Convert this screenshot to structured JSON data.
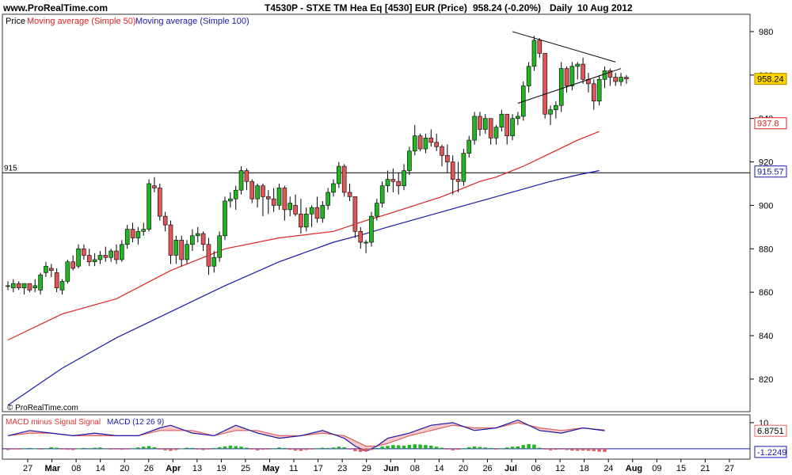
{
  "header": {
    "site": "www.ProRealTime.com",
    "title": "T4530P - STXE TM Hea Eq [4530] EUR (Price)",
    "price_change": "958.24 (-0.20%)",
    "period": "Daily",
    "date": "10 Aug 2012"
  },
  "watermark": "© ProRealTime.com",
  "legend": {
    "price": "Price",
    "ma50": "Moving average (Simple 50)",
    "ma100": "Moving average (Simple 100)"
  },
  "macd_legend": {
    "hist": "MACD minus Signal Signal",
    "macd": "MACD (12 26 9)"
  },
  "colors": {
    "up": "#22b422",
    "down": "#e05555",
    "ma50": "#dd2222",
    "ma100": "#1a1aa8",
    "macd_line": "#1a1aa8",
    "signal_line": "#e06060",
    "hist_pos": "#22b422",
    "hist_neg": "#e05555",
    "price_tag": "#ffd700"
  },
  "chart_data": [
    {
      "type": "candlestick",
      "title": "T4530P - STXE TM Hea Eq [4530] EUR (Price)",
      "ylim": [
        805,
        988
      ],
      "y_ticks": [
        820,
        840,
        860,
        880,
        900,
        920,
        940,
        960,
        980
      ],
      "x_ticks": [
        "27",
        "Mar",
        "08",
        "14",
        "20",
        "26",
        "Apr",
        "13",
        "19",
        "25",
        "May",
        "11",
        "17",
        "23",
        "29",
        "Jun",
        "08",
        "14",
        "20",
        "26",
        "Jul",
        "06",
        "12",
        "18",
        "24",
        "Aug",
        "09",
        "15",
        "21",
        "27"
      ],
      "ohlc": [
        [
          863,
          865,
          861,
          863
        ],
        [
          862,
          866,
          860,
          864
        ],
        [
          864,
          865,
          861,
          862
        ],
        [
          862,
          864,
          859,
          864
        ],
        [
          864,
          864,
          860,
          861
        ],
        [
          862,
          866,
          860,
          863
        ],
        [
          861,
          869,
          859,
          868
        ],
        [
          869,
          874,
          867,
          872
        ],
        [
          871,
          873,
          867,
          870
        ],
        [
          869,
          871,
          860,
          862
        ],
        [
          861,
          866,
          859,
          865
        ],
        [
          865,
          875,
          864,
          874
        ],
        [
          874,
          877,
          870,
          871
        ],
        [
          872,
          882,
          871,
          880
        ],
        [
          880,
          882,
          875,
          877
        ],
        [
          877,
          880,
          872,
          874
        ],
        [
          874,
          878,
          872,
          875
        ],
        [
          875,
          879,
          873,
          877
        ],
        [
          877,
          881,
          874,
          876
        ],
        [
          876,
          880,
          874,
          879
        ],
        [
          879,
          882,
          873,
          875
        ],
        [
          875,
          884,
          874,
          882
        ],
        [
          882,
          891,
          880,
          889
        ],
        [
          889,
          892,
          883,
          885
        ],
        [
          885,
          890,
          882,
          888
        ],
        [
          888,
          892,
          886,
          889
        ],
        [
          889,
          912,
          888,
          910
        ],
        [
          909,
          913,
          906,
          908
        ],
        [
          908,
          910,
          893,
          895
        ],
        [
          895,
          897,
          888,
          891
        ],
        [
          891,
          893,
          873,
          877
        ],
        [
          877,
          886,
          873,
          884
        ],
        [
          884,
          886,
          872,
          875
        ],
        [
          875,
          884,
          873,
          882
        ],
        [
          882,
          889,
          879,
          886
        ],
        [
          886,
          890,
          883,
          887
        ],
        [
          887,
          888,
          879,
          882
        ],
        [
          882,
          885,
          868,
          872
        ],
        [
          872,
          879,
          869,
          876
        ],
        [
          876,
          888,
          874,
          886
        ],
        [
          886,
          904,
          884,
          902
        ],
        [
          902,
          906,
          899,
          903
        ],
        [
          903,
          909,
          898,
          907
        ],
        [
          907,
          918,
          905,
          916
        ],
        [
          916,
          917,
          907,
          911
        ],
        [
          911,
          912,
          901,
          903
        ],
        [
          903,
          910,
          899,
          909
        ],
        [
          909,
          910,
          895,
          904
        ],
        [
          904,
          907,
          896,
          903
        ],
        [
          903,
          908,
          897,
          900
        ],
        [
          900,
          910,
          898,
          908
        ],
        [
          908,
          909,
          893,
          898
        ],
        [
          898,
          904,
          895,
          901
        ],
        [
          900,
          905,
          895,
          896
        ],
        [
          896,
          903,
          887,
          890
        ],
        [
          890,
          899,
          888,
          896
        ],
        [
          896,
          900,
          890,
          899
        ],
        [
          899,
          904,
          892,
          894
        ],
        [
          894,
          902,
          892,
          900
        ],
        [
          900,
          908,
          898,
          906
        ],
        [
          906,
          912,
          904,
          910
        ],
        [
          910,
          920,
          908,
          918
        ],
        [
          918,
          919,
          904,
          906
        ],
        [
          906,
          910,
          902,
          904
        ],
        [
          904,
          904,
          885,
          888
        ],
        [
          888,
          890,
          880,
          883
        ],
        [
          883,
          884,
          878,
          883
        ],
        [
          883,
          897,
          881,
          895
        ],
        [
          895,
          903,
          893,
          901
        ],
        [
          901,
          911,
          899,
          909
        ],
        [
          909,
          916,
          906,
          912
        ],
        [
          912,
          917,
          906,
          911
        ],
        [
          911,
          915,
          905,
          909
        ],
        [
          909,
          919,
          907,
          916
        ],
        [
          916,
          927,
          914,
          925
        ],
        [
          925,
          937,
          923,
          932
        ],
        [
          932,
          933,
          925,
          926
        ],
        [
          926,
          933,
          924,
          931
        ],
        [
          931,
          935,
          927,
          929
        ],
        [
          929,
          933,
          925,
          927
        ],
        [
          927,
          928,
          918,
          923
        ],
        [
          923,
          928,
          915,
          920
        ],
        [
          920,
          923,
          905,
          912
        ],
        [
          912,
          920,
          906,
          911
        ],
        [
          911,
          926,
          909,
          924
        ],
        [
          924,
          932,
          922,
          930
        ],
        [
          930,
          943,
          928,
          941
        ],
        [
          941,
          943,
          932,
          935
        ],
        [
          935,
          942,
          933,
          940
        ],
        [
          940,
          940,
          928,
          931
        ],
        [
          931,
          937,
          928,
          936
        ],
        [
          936,
          944,
          934,
          942
        ],
        [
          942,
          942,
          928,
          932
        ],
        [
          932,
          942,
          930,
          940
        ],
        [
          940,
          943,
          937,
          941
        ],
        [
          941,
          957,
          939,
          955
        ],
        [
          955,
          966,
          952,
          964
        ],
        [
          964,
          978,
          962,
          976
        ],
        [
          976,
          977,
          968,
          970
        ],
        [
          970,
          970,
          940,
          942
        ],
        [
          942,
          946,
          937,
          944
        ],
        [
          944,
          948,
          940,
          946
        ],
        [
          946,
          966,
          943,
          963
        ],
        [
          963,
          964,
          952,
          955
        ],
        [
          955,
          966,
          953,
          964
        ],
        [
          964,
          966,
          958,
          965
        ],
        [
          965,
          968,
          956,
          958
        ],
        [
          958,
          961,
          952,
          956
        ],
        [
          956,
          958,
          944,
          948
        ],
        [
          948,
          960,
          946,
          958
        ],
        [
          958,
          964,
          954,
          962
        ],
        [
          962,
          963,
          955,
          959
        ],
        [
          959,
          961,
          955,
          957
        ],
        [
          957,
          961,
          955,
          959
        ],
        [
          959,
          960,
          956,
          958.24
        ]
      ],
      "ma50": [
        [
          0,
          838
        ],
        [
          10,
          850
        ],
        [
          20,
          857
        ],
        [
          30,
          870
        ],
        [
          40,
          880
        ],
        [
          50,
          885
        ],
        [
          60,
          888
        ],
        [
          66,
          893
        ],
        [
          70,
          896
        ],
        [
          80,
          904
        ],
        [
          87,
          911
        ],
        [
          90,
          913
        ],
        [
          95,
          918
        ],
        [
          100,
          924
        ],
        [
          105,
          930
        ],
        [
          109,
          934
        ]
      ],
      "ma100": [
        [
          0,
          808
        ],
        [
          10,
          825
        ],
        [
          20,
          839
        ],
        [
          30,
          851
        ],
        [
          40,
          863
        ],
        [
          50,
          874
        ],
        [
          60,
          883
        ],
        [
          66,
          887
        ],
        [
          70,
          890
        ],
        [
          80,
          897
        ],
        [
          90,
          904
        ],
        [
          100,
          911
        ],
        [
          105,
          914
        ],
        [
          109,
          916
        ]
      ],
      "level_line": {
        "value": 915,
        "label": "915"
      },
      "triangle": {
        "upper": [
          [
            93,
            980
          ],
          [
            112,
            966
          ]
        ],
        "lower": [
          [
            94,
            947
          ],
          [
            113,
            963
          ]
        ]
      },
      "price_labels": [
        {
          "value": 958.24,
          "label": "958.24"
        },
        {
          "value": 937.8,
          "label": "937.8"
        },
        {
          "value": 915.57,
          "label": "915.57"
        }
      ]
    },
    {
      "type": "line",
      "title": "MACD (12 26 9)",
      "y_ticks": [
        10
      ],
      "ylim": [
        -4,
        13
      ],
      "price_labels": [
        {
          "value": 6.8751,
          "label": "6.8751"
        },
        {
          "value": -1.2249,
          "label": "-1.2249"
        }
      ],
      "macd_pts": [
        [
          0,
          5
        ],
        [
          4,
          7
        ],
        [
          8,
          6
        ],
        [
          12,
          5
        ],
        [
          16,
          6
        ],
        [
          20,
          5
        ],
        [
          24,
          5
        ],
        [
          28,
          8
        ],
        [
          30,
          9
        ],
        [
          34,
          6
        ],
        [
          38,
          5
        ],
        [
          42,
          9
        ],
        [
          46,
          6
        ],
        [
          50,
          4
        ],
        [
          54,
          5
        ],
        [
          58,
          7
        ],
        [
          62,
          4
        ],
        [
          64,
          1
        ],
        [
          66,
          -1
        ],
        [
          68,
          1
        ],
        [
          70,
          4
        ],
        [
          74,
          6
        ],
        [
          78,
          9
        ],
        [
          82,
          10
        ],
        [
          86,
          7
        ],
        [
          90,
          8
        ],
        [
          94,
          11
        ],
        [
          98,
          7
        ],
        [
          102,
          6
        ],
        [
          106,
          8
        ],
        [
          110,
          6.9
        ]
      ],
      "signal_pts": [
        [
          0,
          5
        ],
        [
          4,
          6
        ],
        [
          8,
          6
        ],
        [
          12,
          5
        ],
        [
          16,
          5
        ],
        [
          20,
          5
        ],
        [
          24,
          5
        ],
        [
          28,
          7
        ],
        [
          30,
          7
        ],
        [
          34,
          7
        ],
        [
          38,
          5
        ],
        [
          42,
          7
        ],
        [
          46,
          7
        ],
        [
          50,
          5
        ],
        [
          54,
          5
        ],
        [
          58,
          6
        ],
        [
          62,
          5
        ],
        [
          64,
          3
        ],
        [
          66,
          1
        ],
        [
          68,
          1
        ],
        [
          70,
          2
        ],
        [
          74,
          5
        ],
        [
          78,
          7
        ],
        [
          82,
          9
        ],
        [
          86,
          8
        ],
        [
          90,
          8
        ],
        [
          94,
          10
        ],
        [
          98,
          8
        ],
        [
          102,
          7
        ],
        [
          106,
          8
        ],
        [
          110,
          7.2
        ]
      ],
      "hist": [
        -0.5,
        -0.3,
        -0.2,
        0.2,
        0.3,
        0.1,
        -0.2,
        0.2,
        0.6,
        0.4,
        -0.3,
        -0.4,
        -0.5,
        0.1,
        0.3,
        0.2,
        0.4,
        0.5,
        0.2,
        -0.1,
        -0.3,
        -0.4,
        -0.3,
        0.2,
        0.5,
        0.8,
        1.0,
        0.6,
        -0.2,
        -0.6,
        -0.8,
        -0.5,
        0.1,
        0.4,
        0.3,
        -0.3,
        -0.5,
        -0.2,
        0.3,
        0.6,
        0.9,
        1.2,
        1.0,
        0.8,
        0.4,
        -0.3,
        -0.6,
        -0.4,
        -0.2,
        0.2,
        0.5,
        0.3,
        -0.4,
        -0.7,
        -0.8,
        -0.5,
        -0.3,
        0.2,
        0.4,
        0.3,
        0.5,
        0.8,
        0.6,
        -0.2,
        -0.9,
        -1.2,
        -1.0,
        -0.5,
        0.3,
        0.8,
        1.1,
        1.4,
        1.3,
        1.2,
        1.5,
        1.7,
        1.6,
        1.4,
        1.2,
        0.8,
        0.4,
        -0.2,
        -0.6,
        -0.4,
        0.2,
        0.6,
        0.9,
        0.7,
        0.5,
        0.3,
        -0.2,
        0.2,
        0.5,
        0.8,
        0.9,
        1.4,
        1.8,
        1.6,
        0.4,
        -0.3,
        -0.6,
        -0.4,
        -0.2,
        -0.5,
        -0.7,
        -0.8,
        -0.7,
        -0.8,
        -0.9,
        -1.1,
        -1.2
      ]
    }
  ]
}
